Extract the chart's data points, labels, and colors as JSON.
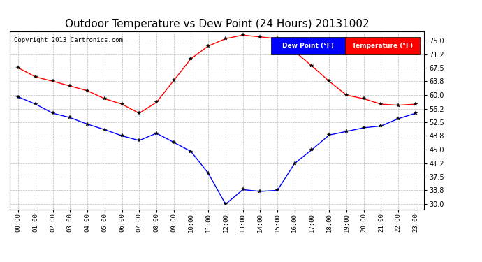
{
  "title": "Outdoor Temperature vs Dew Point (24 Hours) 20131002",
  "copyright": "Copyright 2013 Cartronics.com",
  "legend_labels": [
    "Dew Point (°F)",
    "Temperature (°F)"
  ],
  "legend_bg_colors": [
    "blue",
    "red"
  ],
  "x_labels": [
    "00:00",
    "01:00",
    "02:00",
    "03:00",
    "04:00",
    "05:00",
    "06:00",
    "07:00",
    "08:00",
    "09:00",
    "10:00",
    "11:00",
    "12:00",
    "13:00",
    "14:00",
    "15:00",
    "16:00",
    "17:00",
    "18:00",
    "19:00",
    "20:00",
    "21:00",
    "22:00",
    "23:00"
  ],
  "y_ticks": [
    30.0,
    33.8,
    37.5,
    41.2,
    45.0,
    48.8,
    52.5,
    56.2,
    60.0,
    63.8,
    67.5,
    71.2,
    75.0
  ],
  "temperature": [
    67.5,
    65.0,
    63.8,
    62.5,
    61.2,
    59.0,
    57.5,
    55.0,
    58.0,
    64.0,
    70.0,
    73.5,
    75.5,
    76.5,
    76.0,
    75.5,
    72.0,
    68.0,
    63.8,
    60.0,
    59.0,
    57.5,
    57.2,
    57.5
  ],
  "dew_point": [
    59.5,
    57.5,
    55.0,
    53.8,
    52.0,
    50.5,
    48.8,
    47.5,
    49.5,
    47.0,
    44.5,
    38.5,
    30.0,
    34.0,
    33.5,
    33.8,
    41.2,
    45.0,
    49.0,
    50.0,
    51.0,
    51.5,
    53.5,
    55.0
  ],
  "bg_color": "#ffffff",
  "plot_bg_color": "#ffffff",
  "grid_color": "#bbbbbb",
  "temp_color": "red",
  "dew_color": "blue",
  "title_fontsize": 11,
  "ylim": [
    28.5,
    77.5
  ],
  "xlim": [
    -0.5,
    23.5
  ]
}
